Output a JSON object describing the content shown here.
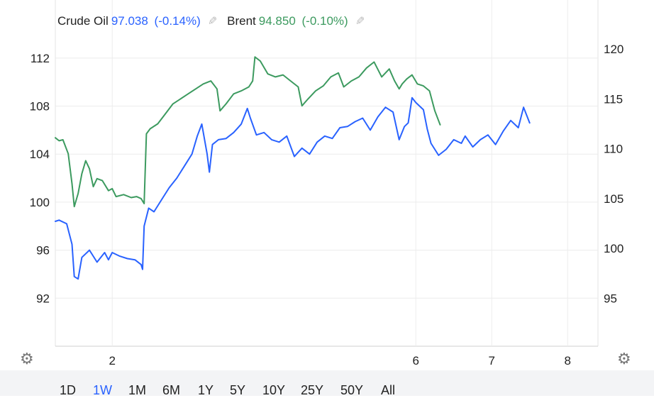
{
  "legend": {
    "crude": {
      "name": "Crude Oil",
      "value": "97.038",
      "change": "(-0.14%)",
      "color": "#2962ff"
    },
    "brent": {
      "name": "Brent",
      "value": "94.850",
      "change": "(-0.10%)",
      "color": "#3c9a5f"
    },
    "edit_icon": "pencil-icon"
  },
  "ranges": [
    {
      "label": "1D",
      "active": false
    },
    {
      "label": "1W",
      "active": true
    },
    {
      "label": "1M",
      "active": false
    },
    {
      "label": "6M",
      "active": false
    },
    {
      "label": "1Y",
      "active": false
    },
    {
      "label": "5Y",
      "active": false
    },
    {
      "label": "10Y",
      "active": false
    },
    {
      "label": "25Y",
      "active": false
    },
    {
      "label": "50Y",
      "active": false
    },
    {
      "label": "All",
      "active": false
    }
  ],
  "settings_icon": "gear-icon",
  "chart_data": {
    "type": "line",
    "x_ticks": [
      "2",
      "6",
      "7",
      "8"
    ],
    "x_tick_positions": [
      2,
      6,
      7,
      8
    ],
    "x_range": [
      1.25,
      8.4
    ],
    "left_axis": {
      "ticks": [
        "112",
        "108",
        "104",
        "100",
        "96",
        "92"
      ],
      "range": [
        88.0,
        114.0
      ]
    },
    "right_axis": {
      "ticks": [
        "120",
        "115",
        "110",
        "105",
        "100",
        "95"
      ],
      "range": [
        90.2,
        121.5
      ]
    },
    "grid": true,
    "series": [
      {
        "name": "Crude Oil",
        "axis": "left",
        "color": "#2962ff",
        "points": [
          [
            1.25,
            98.4
          ],
          [
            1.3,
            98.5
          ],
          [
            1.4,
            98.2
          ],
          [
            1.47,
            96.5
          ],
          [
            1.5,
            93.8
          ],
          [
            1.55,
            93.6
          ],
          [
            1.6,
            95.4
          ],
          [
            1.7,
            96.0
          ],
          [
            1.75,
            95.5
          ],
          [
            1.8,
            95.0
          ],
          [
            1.9,
            95.8
          ],
          [
            1.95,
            95.2
          ],
          [
            2.0,
            95.8
          ],
          [
            2.1,
            95.5
          ],
          [
            2.2,
            95.3
          ],
          [
            2.3,
            95.2
          ],
          [
            2.38,
            94.8
          ],
          [
            2.4,
            94.4
          ],
          [
            2.42,
            98.0
          ],
          [
            2.48,
            99.5
          ],
          [
            2.55,
            99.2
          ],
          [
            2.65,
            100.2
          ],
          [
            2.75,
            101.2
          ],
          [
            2.85,
            102.0
          ],
          [
            2.95,
            103.0
          ],
          [
            3.05,
            104.0
          ],
          [
            3.12,
            105.5
          ],
          [
            3.18,
            106.5
          ],
          [
            3.25,
            104.0
          ],
          [
            3.28,
            102.5
          ],
          [
            3.32,
            104.8
          ],
          [
            3.4,
            105.2
          ],
          [
            3.5,
            105.3
          ],
          [
            3.6,
            105.8
          ],
          [
            3.7,
            106.5
          ],
          [
            3.78,
            107.8
          ],
          [
            3.82,
            107.0
          ],
          [
            3.9,
            105.6
          ],
          [
            4.0,
            105.8
          ],
          [
            4.1,
            105.2
          ],
          [
            4.2,
            105.0
          ],
          [
            4.3,
            105.5
          ],
          [
            4.4,
            103.8
          ],
          [
            4.5,
            104.5
          ],
          [
            4.6,
            104.0
          ],
          [
            4.7,
            105.0
          ],
          [
            4.8,
            105.5
          ],
          [
            4.9,
            105.3
          ],
          [
            5.0,
            106.2
          ],
          [
            5.1,
            106.3
          ],
          [
            5.2,
            106.7
          ],
          [
            5.3,
            107.0
          ],
          [
            5.4,
            106.0
          ],
          [
            5.5,
            107.1
          ],
          [
            5.6,
            107.9
          ],
          [
            5.7,
            107.5
          ],
          [
            5.78,
            105.2
          ],
          [
            5.85,
            106.3
          ],
          [
            5.9,
            106.6
          ],
          [
            5.95,
            108.7
          ],
          [
            6.0,
            108.3
          ],
          [
            6.1,
            107.7
          ],
          [
            6.15,
            106.1
          ],
          [
            6.2,
            104.9
          ],
          [
            6.3,
            103.9
          ],
          [
            6.4,
            104.4
          ],
          [
            6.5,
            105.2
          ],
          [
            6.6,
            104.9
          ],
          [
            6.65,
            105.5
          ],
          [
            6.75,
            104.6
          ],
          [
            6.85,
            105.2
          ],
          [
            6.95,
            105.6
          ],
          [
            7.05,
            104.8
          ],
          [
            7.15,
            105.9
          ],
          [
            7.25,
            106.8
          ],
          [
            7.35,
            106.2
          ],
          [
            7.42,
            107.9
          ],
          [
            7.5,
            106.6
          ]
        ]
      },
      {
        "name": "Brent",
        "axis": "right",
        "color": "#3c9a5f",
        "points": [
          [
            1.25,
            111.1
          ],
          [
            1.3,
            110.8
          ],
          [
            1.35,
            110.9
          ],
          [
            1.42,
            109.5
          ],
          [
            1.47,
            106.5
          ],
          [
            1.5,
            104.2
          ],
          [
            1.55,
            105.5
          ],
          [
            1.6,
            107.5
          ],
          [
            1.65,
            108.8
          ],
          [
            1.7,
            108.0
          ],
          [
            1.75,
            106.2
          ],
          [
            1.8,
            107.0
          ],
          [
            1.87,
            106.8
          ],
          [
            1.95,
            105.8
          ],
          [
            2.0,
            106.0
          ],
          [
            2.05,
            105.2
          ],
          [
            2.15,
            105.4
          ],
          [
            2.25,
            105.1
          ],
          [
            2.32,
            105.2
          ],
          [
            2.38,
            105.0
          ],
          [
            2.42,
            104.5
          ],
          [
            2.45,
            111.5
          ],
          [
            2.5,
            112.0
          ],
          [
            2.6,
            112.5
          ],
          [
            2.7,
            113.5
          ],
          [
            2.8,
            114.5
          ],
          [
            2.9,
            115.0
          ],
          [
            3.0,
            115.5
          ],
          [
            3.1,
            116.0
          ],
          [
            3.2,
            116.5
          ],
          [
            3.3,
            116.8
          ],
          [
            3.38,
            116.0
          ],
          [
            3.42,
            113.8
          ],
          [
            3.5,
            114.5
          ],
          [
            3.6,
            115.5
          ],
          [
            3.7,
            115.8
          ],
          [
            3.8,
            116.2
          ],
          [
            3.85,
            116.8
          ],
          [
            3.88,
            119.2
          ],
          [
            3.95,
            118.8
          ],
          [
            4.05,
            117.5
          ],
          [
            4.15,
            117.2
          ],
          [
            4.25,
            117.4
          ],
          [
            4.35,
            116.8
          ],
          [
            4.45,
            116.2
          ],
          [
            4.5,
            114.3
          ],
          [
            4.58,
            115.0
          ],
          [
            4.68,
            115.8
          ],
          [
            4.78,
            116.3
          ],
          [
            4.88,
            117.2
          ],
          [
            4.98,
            117.6
          ],
          [
            5.05,
            116.2
          ],
          [
            5.15,
            116.8
          ],
          [
            5.25,
            117.2
          ],
          [
            5.35,
            118.1
          ],
          [
            5.45,
            118.7
          ],
          [
            5.55,
            117.2
          ],
          [
            5.65,
            118.0
          ],
          [
            5.72,
            116.8
          ],
          [
            5.78,
            116.0
          ],
          [
            5.82,
            116.5
          ],
          [
            5.88,
            117.0
          ],
          [
            5.95,
            117.4
          ],
          [
            6.02,
            116.5
          ],
          [
            6.1,
            116.3
          ],
          [
            6.18,
            115.8
          ],
          [
            6.25,
            113.8
          ],
          [
            6.32,
            112.4
          ]
        ]
      }
    ]
  }
}
